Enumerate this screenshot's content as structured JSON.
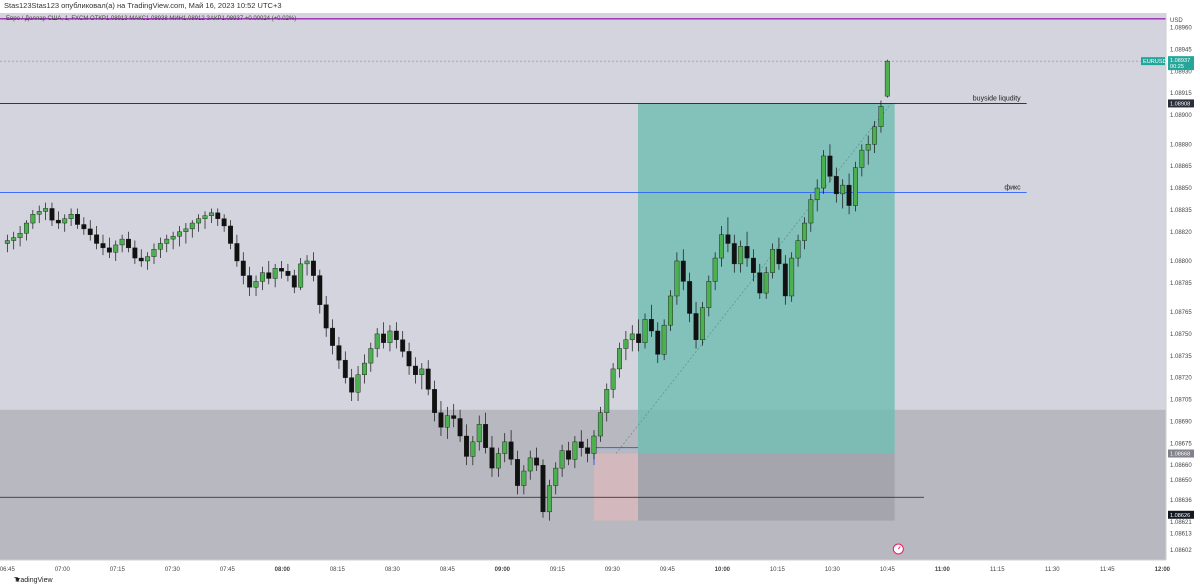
{
  "header": {
    "publisher": "Stas123Stas123 опубликовал(а) на TradingView.com, Май 16, 2023 10:52 UTC+3",
    "symbol_line": "Евро / Доллар США, 1, FXCM  ОТКР1.08913  МАКС1.08938  МИН1.08912  ЗАКР1.08937  +0.00024 (+0.02%)"
  },
  "footer": {
    "brand": "TradingView"
  },
  "icons": {
    "logo": "tradingview-logo-icon",
    "alert": "alert-clock-icon"
  },
  "colors": {
    "background": "#d3d4dd",
    "up_candle": "#4caf50",
    "down_candle": "#111111",
    "target_zone": "#6bbdb1",
    "stop_zone": "#d9b8bc",
    "discount_zone": "#b8b9c0",
    "fix_line": "#2962ff",
    "top_line": "#9c27b0",
    "current_price_label": "#26a69a"
  },
  "chart_data": {
    "type": "candlestick",
    "title": "",
    "ylabel": "USD",
    "ylim": [
      1.08595,
      1.0897
    ],
    "y_ticks": [
      "1.08960",
      "1.08945",
      "1.08930",
      "1.08915",
      "1.08900",
      "1.08880",
      "1.08865",
      "1.08850",
      "1.08835",
      "1.08820",
      "1.08800",
      "1.08785",
      "1.08765",
      "1.08750",
      "1.08735",
      "1.08720",
      "1.08705",
      "1.08690",
      "1.08675",
      "1.08660",
      "1.08650",
      "1.08636",
      "1.08621",
      "1.08613",
      "1.08602"
    ],
    "x_ticks": [
      "06:45",
      "07:00",
      "07:15",
      "07:30",
      "07:45",
      "08:00",
      "08:15",
      "08:30",
      "08:45",
      "09:00",
      "09:15",
      "09:30",
      "09:45",
      "10:00",
      "10:15",
      "10:30",
      "10:45",
      "11:00",
      "11:15",
      "11:30",
      "11:45",
      "12:00"
    ],
    "x_range_minutes": [
      -2,
      316
    ],
    "price_labels": [
      {
        "text": "EURUSD",
        "price": 1.08937,
        "kind": "symbol"
      },
      {
        "text": "1.08937",
        "price": 1.08937,
        "kind": "current"
      },
      {
        "text": "00:25",
        "price": 1.08937,
        "kind": "countdown"
      },
      {
        "text": "1.08908",
        "price": 1.08908,
        "kind": "line"
      },
      {
        "text": "1.08668",
        "price": 1.08668,
        "kind": "level"
      },
      {
        "text": "1.08626",
        "price": 1.08626,
        "kind": "level2"
      }
    ],
    "lines": [
      {
        "label": "buyside liqudity",
        "price": 1.08908,
        "from_min": -2,
        "to_min": 278
      },
      {
        "label": "фикс",
        "price": 1.08847,
        "from_min": -2,
        "to_min": 278
      },
      {
        "label": "",
        "price": 1.08966,
        "from_min": -2,
        "to_min": 316
      },
      {
        "label": "",
        "price": 1.08638,
        "from_min": -2,
        "to_min": 250
      }
    ],
    "zones": [
      {
        "role": "discount",
        "from_min": -2,
        "to_min": 316,
        "low": 1.08595,
        "high": 1.08698
      },
      {
        "role": "target",
        "from_min": 172,
        "to_min": 242,
        "low": 1.08668,
        "high": 1.08908
      },
      {
        "role": "stop",
        "from_min": 160,
        "to_min": 172,
        "low": 1.08622,
        "high": 1.08668
      },
      {
        "role": "stop-grey",
        "from_min": 172,
        "to_min": 242,
        "low": 1.08622,
        "high": 1.08668
      }
    ],
    "series_ohlc": [
      [
        1.08812,
        1.08818,
        1.08806,
        1.08814
      ],
      [
        1.08814,
        1.0882,
        1.08808,
        1.08816
      ],
      [
        1.08816,
        1.08824,
        1.0881,
        1.08819
      ],
      [
        1.08819,
        1.08828,
        1.08814,
        1.08826
      ],
      [
        1.08826,
        1.08835,
        1.08822,
        1.08832
      ],
      [
        1.08832,
        1.08838,
        1.08826,
        1.08834
      ],
      [
        1.08834,
        1.0884,
        1.08828,
        1.08836
      ],
      [
        1.08836,
        1.0884,
        1.08824,
        1.08828
      ],
      [
        1.08828,
        1.08834,
        1.08822,
        1.08826
      ],
      [
        1.08826,
        1.08832,
        1.0882,
        1.08829
      ],
      [
        1.08829,
        1.08836,
        1.08824,
        1.08832
      ],
      [
        1.08832,
        1.08836,
        1.08822,
        1.08825
      ],
      [
        1.08825,
        1.0883,
        1.08818,
        1.08822
      ],
      [
        1.08822,
        1.08828,
        1.08814,
        1.08818
      ],
      [
        1.08818,
        1.08824,
        1.08808,
        1.08812
      ],
      [
        1.08812,
        1.08818,
        1.08804,
        1.08809
      ],
      [
        1.08809,
        1.08816,
        1.08802,
        1.08806
      ],
      [
        1.08806,
        1.08814,
        1.088,
        1.08811
      ],
      [
        1.08811,
        1.08818,
        1.08806,
        1.08815
      ],
      [
        1.08815,
        1.0882,
        1.08806,
        1.08809
      ],
      [
        1.08809,
        1.08814,
        1.08798,
        1.08802
      ],
      [
        1.08802,
        1.08808,
        1.08796,
        1.088
      ],
      [
        1.088,
        1.08806,
        1.08794,
        1.08803
      ],
      [
        1.08803,
        1.08812,
        1.08798,
        1.08808
      ],
      [
        1.08808,
        1.08816,
        1.08802,
        1.08812
      ],
      [
        1.08812,
        1.08818,
        1.08806,
        1.08815
      ],
      [
        1.08815,
        1.0882,
        1.08808,
        1.08817
      ],
      [
        1.08817,
        1.08824,
        1.0881,
        1.0882
      ],
      [
        1.0882,
        1.08826,
        1.08812,
        1.08822
      ],
      [
        1.08822,
        1.08828,
        1.08816,
        1.08826
      ],
      [
        1.08826,
        1.08832,
        1.0882,
        1.08829
      ],
      [
        1.08829,
        1.08834,
        1.08822,
        1.08831
      ],
      [
        1.08831,
        1.08836,
        1.08826,
        1.08833
      ],
      [
        1.08833,
        1.08836,
        1.08824,
        1.08829
      ],
      [
        1.08829,
        1.08832,
        1.0882,
        1.08824
      ],
      [
        1.08824,
        1.08828,
        1.08808,
        1.08812
      ],
      [
        1.08812,
        1.08818,
        1.08796,
        1.088
      ],
      [
        1.088,
        1.08806,
        1.08784,
        1.0879
      ],
      [
        1.0879,
        1.08796,
        1.08776,
        1.08782
      ],
      [
        1.08782,
        1.0879,
        1.08776,
        1.08786
      ],
      [
        1.08786,
        1.08796,
        1.0878,
        1.08792
      ],
      [
        1.08792,
        1.088,
        1.08784,
        1.08788
      ],
      [
        1.08788,
        1.08798,
        1.08782,
        1.08795
      ],
      [
        1.08795,
        1.088,
        1.08788,
        1.08793
      ],
      [
        1.08793,
        1.08798,
        1.08786,
        1.0879
      ],
      [
        1.0879,
        1.08794,
        1.08778,
        1.08782
      ],
      [
        1.08782,
        1.08802,
        1.0878,
        1.08798
      ],
      [
        1.08798,
        1.08804,
        1.0879,
        1.088
      ],
      [
        1.088,
        1.08806,
        1.08786,
        1.0879
      ],
      [
        1.0879,
        1.08794,
        1.08764,
        1.0877
      ],
      [
        1.0877,
        1.08776,
        1.08748,
        1.08754
      ],
      [
        1.08754,
        1.0876,
        1.08736,
        1.08742
      ],
      [
        1.08742,
        1.08748,
        1.08726,
        1.08732
      ],
      [
        1.08732,
        1.08738,
        1.08716,
        1.0872
      ],
      [
        1.0872,
        1.08726,
        1.08704,
        1.0871
      ],
      [
        1.0871,
        1.08728,
        1.08704,
        1.08722
      ],
      [
        1.08722,
        1.08736,
        1.08716,
        1.0873
      ],
      [
        1.0873,
        1.08744,
        1.08724,
        1.0874
      ],
      [
        1.0874,
        1.08754,
        1.08734,
        1.0875
      ],
      [
        1.0875,
        1.08758,
        1.0874,
        1.08744
      ],
      [
        1.08744,
        1.08756,
        1.08738,
        1.08752
      ],
      [
        1.08752,
        1.08758,
        1.0874,
        1.08746
      ],
      [
        1.08746,
        1.08752,
        1.08734,
        1.08738
      ],
      [
        1.08738,
        1.08744,
        1.08722,
        1.08728
      ],
      [
        1.08728,
        1.08734,
        1.08716,
        1.08722
      ],
      [
        1.08722,
        1.0873,
        1.08712,
        1.08726
      ],
      [
        1.08726,
        1.08732,
        1.08708,
        1.08712
      ],
      [
        1.08712,
        1.08718,
        1.0869,
        1.08696
      ],
      [
        1.08696,
        1.08704,
        1.0868,
        1.08686
      ],
      [
        1.08686,
        1.087,
        1.08678,
        1.08694
      ],
      [
        1.08694,
        1.08702,
        1.08686,
        1.08692
      ],
      [
        1.08692,
        1.08698,
        1.08676,
        1.0868
      ],
      [
        1.0868,
        1.08688,
        1.0866,
        1.08666
      ],
      [
        1.08666,
        1.0868,
        1.0866,
        1.08676
      ],
      [
        1.08676,
        1.08694,
        1.0867,
        1.08688
      ],
      [
        1.08688,
        1.08696,
        1.08668,
        1.08672
      ],
      [
        1.08672,
        1.0868,
        1.08652,
        1.08658
      ],
      [
        1.08658,
        1.08672,
        1.08652,
        1.08668
      ],
      [
        1.08668,
        1.08682,
        1.08662,
        1.08676
      ],
      [
        1.08676,
        1.08684,
        1.0866,
        1.08664
      ],
      [
        1.08664,
        1.0867,
        1.0864,
        1.08646
      ],
      [
        1.08646,
        1.0866,
        1.0864,
        1.08656
      ],
      [
        1.08656,
        1.0867,
        1.0865,
        1.08665
      ],
      [
        1.08665,
        1.08672,
        1.08656,
        1.0866
      ],
      [
        1.0866,
        1.08664,
        1.08624,
        1.08628
      ],
      [
        1.08628,
        1.0865,
        1.08622,
        1.08646
      ],
      [
        1.08646,
        1.08662,
        1.0864,
        1.08658
      ],
      [
        1.08658,
        1.08674,
        1.08652,
        1.0867
      ],
      [
        1.0867,
        1.08676,
        1.0866,
        1.08664
      ],
      [
        1.08664,
        1.0868,
        1.08658,
        1.08676
      ],
      [
        1.08676,
        1.08684,
        1.08666,
        1.08672
      ],
      [
        1.08672,
        1.08678,
        1.08662,
        1.08668
      ],
      [
        1.08668,
        1.08684,
        1.08664,
        1.0868
      ],
      [
        1.0868,
        1.087,
        1.08676,
        1.08696
      ],
      [
        1.08696,
        1.08716,
        1.0869,
        1.08712
      ],
      [
        1.08712,
        1.0873,
        1.08706,
        1.08726
      ],
      [
        1.08726,
        1.08744,
        1.0872,
        1.0874
      ],
      [
        1.0874,
        1.08752,
        1.08732,
        1.08746
      ],
      [
        1.08746,
        1.08756,
        1.08738,
        1.0875
      ],
      [
        1.0875,
        1.0876,
        1.08738,
        1.08744
      ],
      [
        1.08744,
        1.08764,
        1.0874,
        1.0876
      ],
      [
        1.0876,
        1.0877,
        1.08748,
        1.08752
      ],
      [
        1.08752,
        1.08758,
        1.0873,
        1.08736
      ],
      [
        1.08736,
        1.0876,
        1.08732,
        1.08756
      ],
      [
        1.08756,
        1.0878,
        1.08752,
        1.08776
      ],
      [
        1.08776,
        1.08806,
        1.0877,
        1.088
      ],
      [
        1.088,
        1.08808,
        1.0878,
        1.08786
      ],
      [
        1.08786,
        1.08792,
        1.08758,
        1.08764
      ],
      [
        1.08764,
        1.08772,
        1.0874,
        1.08746
      ],
      [
        1.08746,
        1.08772,
        1.08742,
        1.08768
      ],
      [
        1.08768,
        1.0879,
        1.08762,
        1.08786
      ],
      [
        1.08786,
        1.08806,
        1.0878,
        1.08802
      ],
      [
        1.08802,
        1.08824,
        1.08796,
        1.08818
      ],
      [
        1.08818,
        1.0883,
        1.08806,
        1.08812
      ],
      [
        1.08812,
        1.08818,
        1.08792,
        1.08798
      ],
      [
        1.08798,
        1.08814,
        1.08792,
        1.0881
      ],
      [
        1.0881,
        1.0882,
        1.08796,
        1.08802
      ],
      [
        1.08802,
        1.08808,
        1.08786,
        1.08792
      ],
      [
        1.08792,
        1.08798,
        1.08774,
        1.08778
      ],
      [
        1.08778,
        1.08796,
        1.08774,
        1.08792
      ],
      [
        1.08792,
        1.08812,
        1.08788,
        1.08808
      ],
      [
        1.08808,
        1.08816,
        1.08794,
        1.08798
      ],
      [
        1.08798,
        1.08804,
        1.0877,
        1.08776
      ],
      [
        1.08776,
        1.08806,
        1.08772,
        1.08802
      ],
      [
        1.08802,
        1.08818,
        1.08796,
        1.08814
      ],
      [
        1.08814,
        1.0883,
        1.08808,
        1.08826
      ],
      [
        1.08826,
        1.08846,
        1.0882,
        1.08842
      ],
      [
        1.08842,
        1.08856,
        1.08834,
        1.0885
      ],
      [
        1.0885,
        1.08876,
        1.08846,
        1.08872
      ],
      [
        1.08872,
        1.0888,
        1.08854,
        1.08858
      ],
      [
        1.08858,
        1.08864,
        1.0884,
        1.08846
      ],
      [
        1.08846,
        1.08856,
        1.08836,
        1.08852
      ],
      [
        1.08852,
        1.0886,
        1.08832,
        1.08838
      ],
      [
        1.08838,
        1.08868,
        1.08834,
        1.08864
      ],
      [
        1.08864,
        1.0888,
        1.08858,
        1.08876
      ],
      [
        1.08876,
        1.08886,
        1.08866,
        1.0888
      ],
      [
        1.0888,
        1.08896,
        1.08874,
        1.08892
      ],
      [
        1.08892,
        1.0891,
        1.08888,
        1.08906
      ],
      [
        1.08913,
        1.08938,
        1.08912,
        1.08937
      ]
    ]
  }
}
